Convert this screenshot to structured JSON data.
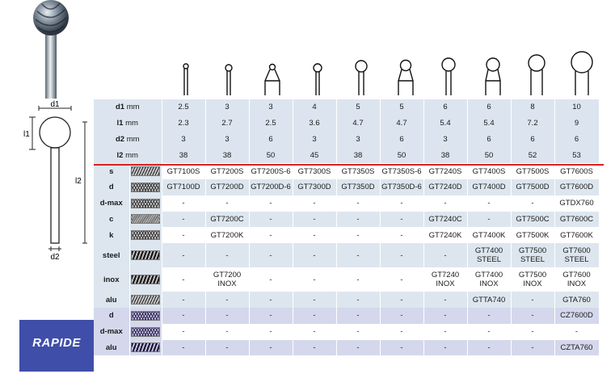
{
  "dimension_rows": [
    {
      "symbol": "d1",
      "unit": "mm",
      "values": [
        "2.5",
        "3",
        "3",
        "4",
        "5",
        "5",
        "6",
        "6",
        "8",
        "10"
      ]
    },
    {
      "symbol": "l1",
      "unit": "mm",
      "values": [
        "2.3",
        "2.7",
        "2.5",
        "3.6",
        "4.7",
        "4.7",
        "5.4",
        "5.4",
        "7.2",
        "9"
      ]
    },
    {
      "symbol": "d2",
      "unit": "mm",
      "values": [
        "3",
        "3",
        "6",
        "3",
        "3",
        "6",
        "3",
        "6",
        "6",
        "6"
      ]
    },
    {
      "symbol": "l2",
      "unit": "mm",
      "values": [
        "38",
        "38",
        "50",
        "45",
        "38",
        "50",
        "38",
        "50",
        "52",
        "53"
      ]
    }
  ],
  "material_rows": [
    {
      "label": "s",
      "texture": "coarse-spiral-cut",
      "values": [
        "GT7100S",
        "GT7200S",
        "GT7200S-6",
        "GT7300S",
        "GT7350S",
        "GT7350S-6",
        "GT7240S",
        "GT7400S",
        "GT7500S",
        "GT7600S"
      ]
    },
    {
      "label": "d",
      "texture": "double-cut",
      "values": [
        "GT7100D",
        "GT7200D",
        "GT7200D-6",
        "GT7300D",
        "GT7350D",
        "GT7350D-6",
        "GT7240D",
        "GT7400D",
        "GT7500D",
        "GT7600D"
      ]
    },
    {
      "label": "d-max",
      "texture": "double-cut-max",
      "values": [
        "-",
        "-",
        "-",
        "-",
        "-",
        "-",
        "-",
        "-",
        "-",
        "GTDX760"
      ]
    },
    {
      "label": "c",
      "texture": "chip-breaker",
      "values": [
        "-",
        "GT7200C",
        "-",
        "-",
        "-",
        "-",
        "GT7240C",
        "-",
        "GT7500C",
        "GT7600C"
      ]
    },
    {
      "label": "k",
      "texture": "knurl-cut",
      "values": [
        "-",
        "GT7200K",
        "-",
        "-",
        "-",
        "-",
        "GT7240K",
        "GT7400K",
        "GT7500K",
        "GT7600K"
      ]
    },
    {
      "label": "steel",
      "texture": "steel-cut",
      "values": [
        "-",
        "-",
        "-",
        "-",
        "-",
        "-",
        "-",
        "GT7400\nSTEEL",
        "GT7500\nSTEEL",
        "GT7600\nSTEEL"
      ]
    },
    {
      "label": "inox",
      "texture": "inox-cut",
      "values": [
        "-",
        "GT7200\nINOX",
        "-",
        "-",
        "-",
        "-",
        "GT7240\nINOX",
        "GT7400\nINOX",
        "GT7500\nINOX",
        "GT7600\nINOX"
      ]
    },
    {
      "label": "alu",
      "texture": "alu-cut",
      "values": [
        "-",
        "-",
        "-",
        "-",
        "-",
        "-",
        "-",
        "GTTA740",
        "-",
        "GTA760"
      ]
    }
  ],
  "rapide": {
    "title": "RAPIDE",
    "rows": [
      {
        "label": "d",
        "texture": "rapide-double-cut",
        "values": [
          "-",
          "-",
          "-",
          "-",
          "-",
          "-",
          "-",
          "-",
          "-",
          "CZ7600D"
        ]
      },
      {
        "label": "d-max",
        "texture": "rapide-double-cut-max",
        "values": [
          "-",
          "-",
          "-",
          "-",
          "-",
          "-",
          "-",
          "-",
          "-",
          "-"
        ]
      },
      {
        "label": "alu",
        "texture": "rapide-alu-cut",
        "values": [
          "-",
          "-",
          "-",
          "-",
          "-",
          "-",
          "-",
          "-",
          "-",
          "CZTA760"
        ]
      }
    ]
  },
  "diagram_labels": {
    "d1": "d1",
    "l1": "l1",
    "l2": "l2",
    "d2": "d2"
  },
  "colors": {
    "header_blue": "#dce5ef",
    "rapide_blue": "#3f4ea8",
    "rapide_rows": "#d5d8ec",
    "separator_red": "#d8201f"
  }
}
